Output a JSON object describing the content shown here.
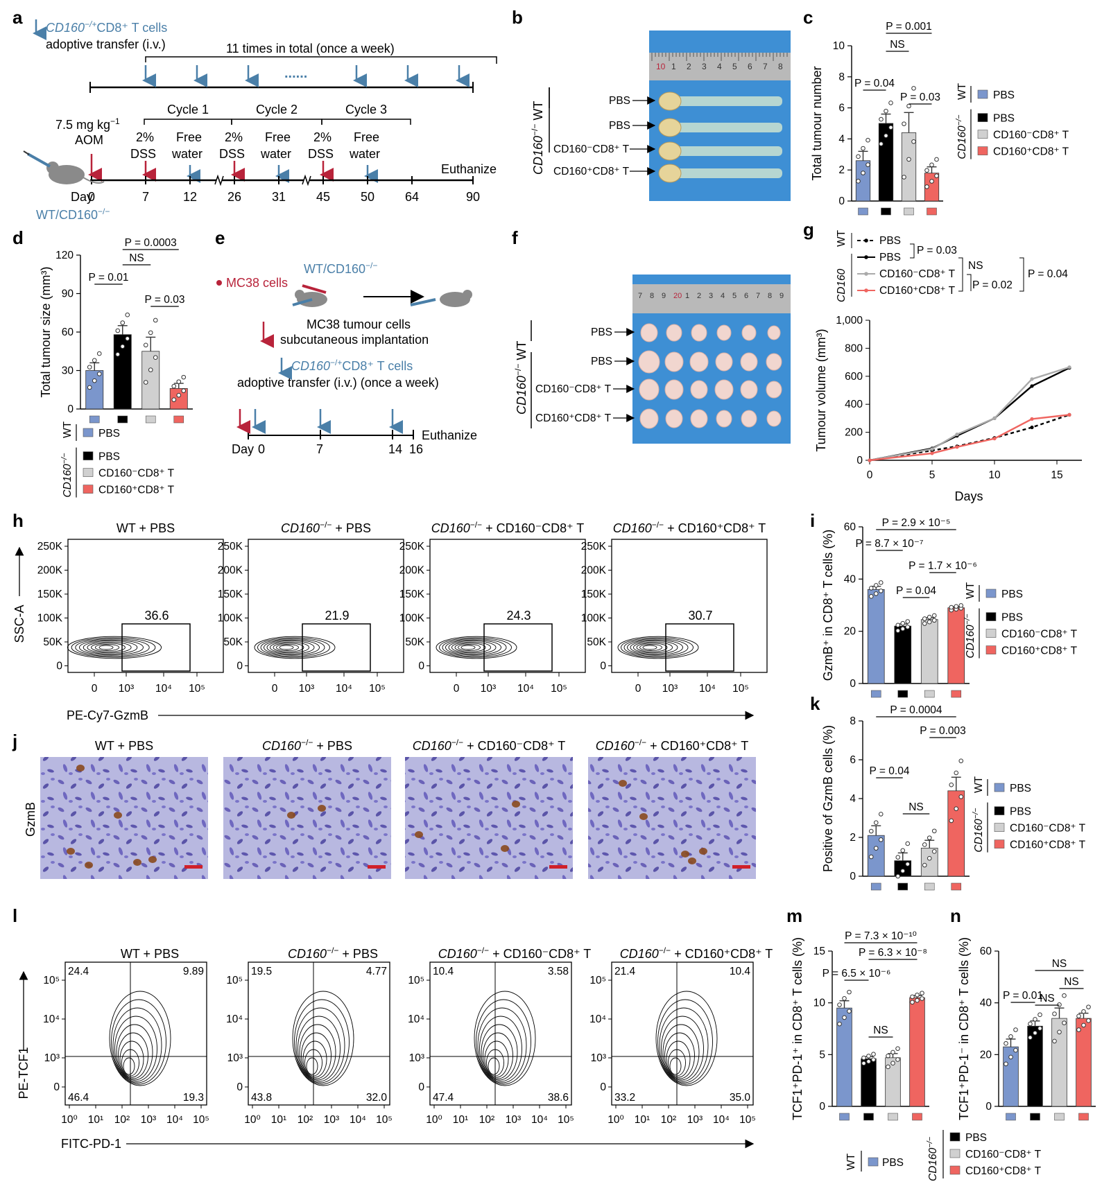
{
  "panel_letters": {
    "a": "a",
    "b": "b",
    "c": "c",
    "d": "d",
    "e": "e",
    "f": "f",
    "g": "g",
    "h": "h",
    "i": "i",
    "j": "j",
    "k": "k",
    "l": "l",
    "m": "m",
    "n": "n"
  },
  "colors": {
    "wt_pbs": "#7b96cc",
    "ko_pbs": "#000000",
    "ko_neg": "#d0d0d0",
    "ko_pos": "#ef6560",
    "arrow_blue": "#4a7fa8",
    "arrow_red": "#b8233a",
    "photo_bg": "#3e8fd4"
  },
  "legend": {
    "wt": "WT",
    "ko": "CD160",
    "ko_sup": "−/−",
    "pbs": "PBS",
    "neg": "CD160⁻CD8⁺ T",
    "pos": "CD160⁺CD8⁺ T"
  },
  "panel_a": {
    "transfer_line1": "CD160",
    "transfer_sup": "−/+",
    "transfer_rest": "CD8⁺ T cells",
    "transfer_line2": "adoptive transfer (i.v.)",
    "times": "11 times in total (once a week)",
    "dots": "......",
    "dose": "7.5 mg kg",
    "dose_sup": "−1",
    "aom": "AOM",
    "cycles": [
      "Cycle 1",
      "Cycle 2",
      "Cycle 3"
    ],
    "dss": [
      "2%",
      "DSS"
    ],
    "free": [
      "Free",
      "water"
    ],
    "euthanize": "Euthanize",
    "day_label": "Day",
    "days": [
      "0",
      "7",
      "12",
      "26",
      "31",
      "45",
      "50",
      "64",
      "90"
    ],
    "mouse_label": "WT/CD160",
    "mouse_sup": "−/−"
  },
  "panel_b": {
    "labels": [
      "PBS",
      "PBS",
      "CD160⁻CD8⁺ T",
      "CD160⁺CD8⁺ T"
    ],
    "ruler": [
      "10",
      "1",
      "2",
      "3",
      "4",
      "5",
      "6",
      "7",
      "8"
    ]
  },
  "panel_e": {
    "mc38": "MC38 cells",
    "mouse_label": "WT/CD160",
    "mouse_sup": "−/−",
    "implant1": "MC38 tumour cells",
    "implant2": "subcutaneous implantation",
    "transfer1": "CD160",
    "transfer_sup": "−/+",
    "transfer_rest": "CD8⁺ T cells",
    "transfer2": "adoptive transfer (i.v.) (once a week)",
    "day_label": "Day",
    "days": [
      "0",
      "7",
      "14",
      "16"
    ],
    "euthanize": "Euthanize"
  },
  "panel_f": {
    "labels": [
      "PBS",
      "PBS",
      "CD160⁻CD8⁺ T",
      "CD160⁺CD8⁺ T"
    ],
    "ruler": [
      "7",
      "8",
      "9",
      "20",
      "1",
      "2",
      "3",
      "4",
      "5",
      "6",
      "7",
      "8",
      "9"
    ]
  },
  "panel_g_legend": {
    "p1": "P = 0.03",
    "ns": "NS",
    "p2": "P = 0.02",
    "p3": "P = 0.04"
  },
  "panel_h": {
    "titles": [
      "WT + PBS",
      "CD160−/− + PBS",
      "CD160−/− + CD160⁻CD8⁺ T",
      "CD160−/− + CD160⁺CD8⁺ T"
    ],
    "gates": [
      "36.6",
      "21.9",
      "24.3",
      "30.7"
    ],
    "yticks": [
      "250K",
      "200K",
      "150K",
      "100K",
      "50K",
      "0"
    ],
    "xticks": [
      "0",
      "10³",
      "10⁴",
      "10⁵"
    ],
    "ylabel": "SSC-A",
    "xlabel": "PE-Cy7-GzmB"
  },
  "panel_j": {
    "titles": [
      "WT + PBS",
      "CD160−/− + PBS",
      "CD160−/− + CD160⁻CD8⁺ T",
      "CD160−/− + CD160⁺CD8⁺ T"
    ],
    "ylabel": "GzmB"
  },
  "panel_l": {
    "titles": [
      "WT + PBS",
      "CD160−/− + PBS",
      "CD160−/− + CD160⁻CD8⁺ T",
      "CD160−/− + CD160⁺CD8⁺ T"
    ],
    "quadrants": [
      [
        "24.4",
        "9.89",
        "46.4",
        "19.3"
      ],
      [
        "19.5",
        "4.77",
        "43.8",
        "32.0"
      ],
      [
        "10.4",
        "3.58",
        "47.4",
        "38.6"
      ],
      [
        "21.4",
        "10.4",
        "33.2",
        "35.0"
      ]
    ],
    "yticks": [
      "10⁵",
      "10⁴",
      "10³",
      "0"
    ],
    "xticks": [
      "10⁰",
      "10¹",
      "10²",
      "10³",
      "10⁴",
      "10⁵"
    ],
    "ylabel": "PE-TCF1",
    "xlabel": "FITC-PD-1"
  },
  "chart_data": [
    {
      "panel": "c",
      "type": "bar",
      "categories": [
        "WT PBS",
        "CD160−/− PBS",
        "CD160−/− CD160⁻CD8⁺ T",
        "CD160−/− CD160⁺CD8⁺ T"
      ],
      "values": [
        2.6,
        5.0,
        4.4,
        1.8
      ],
      "errors": [
        0.6,
        0.6,
        1.3,
        0.4
      ],
      "ylabel": "Total tumour number",
      "ylim": [
        0,
        10
      ],
      "yticks": [
        "0",
        "2",
        "4",
        "6",
        "8",
        "10"
      ],
      "annotations": [
        "P = 0.001",
        "NS",
        "P = 0.04",
        "P = 0.03"
      ]
    },
    {
      "panel": "d",
      "type": "bar",
      "categories": [
        "WT PBS",
        "CD160−/− PBS",
        "CD160−/− CD160⁻CD8⁺ T",
        "CD160−/− CD160⁺CD8⁺ T"
      ],
      "values": [
        30,
        58,
        45,
        16
      ],
      "errors": [
        6,
        7,
        11,
        4
      ],
      "ylabel": "Total tumour size (mm³)",
      "ylim": [
        0,
        120
      ],
      "yticks": [
        "0",
        "30",
        "60",
        "90",
        "120"
      ],
      "annotations": [
        "P = 0.0003",
        "NS",
        "P = 0.01",
        "P = 0.03"
      ]
    },
    {
      "panel": "g",
      "type": "line",
      "x": [
        0,
        5,
        7,
        10,
        13,
        16
      ],
      "series": [
        {
          "name": "WT PBS",
          "values": [
            0,
            70,
            100,
            160,
            235,
            325
          ]
        },
        {
          "name": "CD160−/− PBS",
          "values": [
            0,
            85,
            175,
            300,
            530,
            660
          ]
        },
        {
          "name": "CD160−/− CD160⁻CD8⁺ T",
          "values": [
            0,
            80,
            185,
            300,
            580,
            665
          ]
        },
        {
          "name": "CD160−/− CD160⁺CD8⁺ T",
          "values": [
            0,
            50,
            95,
            155,
            295,
            325
          ]
        }
      ],
      "xlabel": "Days",
      "ylabel": "Tumour volume (mm³)",
      "xlim": [
        0,
        17
      ],
      "ylim": [
        0,
        1000
      ],
      "xticks": [
        "0",
        "5",
        "10",
        "15"
      ],
      "yticks": [
        "0",
        "200",
        "400",
        "600",
        "800",
        "1,000"
      ]
    },
    {
      "panel": "i",
      "type": "bar",
      "categories": [
        "WT PBS",
        "CD160−/− PBS",
        "CD160−/− CD160⁻CD8⁺ T",
        "CD160−/− CD160⁺CD8⁺ T"
      ],
      "values": [
        36,
        22,
        24.5,
        29
      ],
      "errors": [
        1.2,
        0.8,
        0.7,
        0.4
      ],
      "ylabel": "GzmB⁺ in CD8⁺ T cells (%)",
      "ylim": [
        0,
        60
      ],
      "yticks": [
        "0",
        "20",
        "40",
        "60"
      ],
      "annotations": [
        "P = 2.9 × 10⁻⁵",
        "P = 8.7 × 10⁻⁷",
        "P = 1.7 × 10⁻⁶",
        "P = 0.04"
      ]
    },
    {
      "panel": "k",
      "type": "bar",
      "categories": [
        "WT PBS",
        "CD160−/− PBS",
        "CD160−/− CD160⁻CD8⁺ T",
        "CD160−/− CD160⁺CD8⁺ T"
      ],
      "values": [
        2.1,
        0.8,
        1.45,
        4.4
      ],
      "errors": [
        0.5,
        0.4,
        0.4,
        0.7
      ],
      "ylabel": "Positive of GzmB cells (%)",
      "ylim": [
        0,
        8
      ],
      "yticks": [
        "0",
        "2",
        "4",
        "6",
        "8"
      ],
      "annotations": [
        "P = 0.0004",
        "P = 0.003",
        "P = 0.04",
        "NS"
      ]
    },
    {
      "panel": "m",
      "type": "bar",
      "categories": [
        "WT PBS",
        "CD160−/− PBS",
        "CD160−/− CD160⁻CD8⁺ T",
        "CD160−/− CD160⁺CD8⁺ T"
      ],
      "values": [
        9.5,
        4.6,
        4.7,
        10.5
      ],
      "errors": [
        0.7,
        0.2,
        0.4,
        0.2
      ],
      "ylabel": "TCF1⁺PD-1⁺ in CD8⁺ T cells (%)",
      "ylim": [
        0,
        15
      ],
      "yticks": [
        "0",
        "5",
        "10",
        "15"
      ],
      "annotations": [
        "P = 7.3 × 10⁻¹⁰",
        "P = 6.3 × 10⁻⁸",
        "P = 6.5 × 10⁻⁶",
        "NS"
      ]
    },
    {
      "panel": "n",
      "type": "bar",
      "categories": [
        "WT PBS",
        "CD160−/− PBS",
        "CD160−/− CD160⁻CD8⁺ T",
        "CD160−/− CD160⁺CD8⁺ T"
      ],
      "values": [
        23,
        31,
        34,
        34
      ],
      "errors": [
        3,
        2,
        4,
        2
      ],
      "ylabel": "TCF1⁺PD-1⁻ in CD8⁺ T cells (%)",
      "ylim": [
        0,
        60
      ],
      "yticks": [
        "0",
        "20",
        "40",
        "60"
      ],
      "annotations": [
        "NS",
        "NS",
        "NS",
        "P = 0.01"
      ]
    }
  ]
}
